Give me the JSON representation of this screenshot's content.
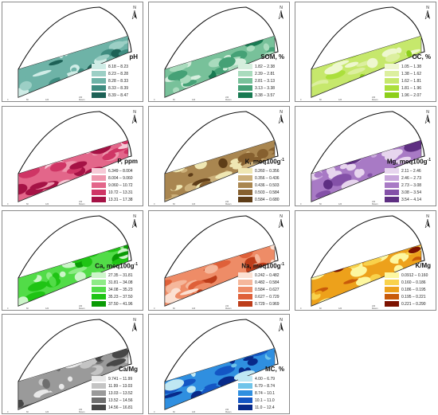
{
  "north_label": "N",
  "scale_ticks": [
    "0",
    "60",
    "120",
    "240 Meters"
  ],
  "panels": [
    {
      "title": "pH",
      "colors": [
        "#cfece6",
        "#9ccfc5",
        "#6eb3a7",
        "#3f8c80",
        "#1d6156"
      ],
      "classes": [
        "8.18 – 8.23",
        "8.23 – 8.28",
        "8.28 – 8.33",
        "8.33 – 8.39",
        "8.39 – 8.47"
      ]
    },
    {
      "title": "SOM, %",
      "colors": [
        "#d5eedd",
        "#a9dbbd",
        "#78c19a",
        "#45a176",
        "#187a52"
      ],
      "classes": [
        "1.82 – 2.38",
        "2.39 – 2.81",
        "2.81 – 3.13",
        "3.13 – 3.38",
        "3.38 – 3.57"
      ]
    },
    {
      "title": "OC, %",
      "colors": [
        "#eef7cf",
        "#dcef9f",
        "#c6e86c",
        "#abdf3c",
        "#8ccf1a"
      ],
      "classes": [
        "1.05 – 1.38",
        "1.38 – 1.62",
        "1.62 – 1.81",
        "1.81 – 1.96",
        "1.96 – 2.07"
      ]
    },
    {
      "title": "P, ppm",
      "colors": [
        "#f6c9d6",
        "#ee96ad",
        "#e3668a",
        "#cf3565",
        "#a51245"
      ],
      "classes": [
        "6.349 – 8.004",
        "8.004 – 9.060",
        "9.060 – 10.72",
        "10.72 – 13.31",
        "13.31 – 17.38"
      ]
    },
    {
      "title": "K, meq100g",
      "sup": "-1",
      "colors": [
        "#efe7b3",
        "#ccb07a",
        "#a98650",
        "#86602f",
        "#5e3d18"
      ],
      "classes": [
        "0.260 – 0.356",
        "0.356 – 0.436",
        "0.436 – 0.503",
        "0.503 – 0.584",
        "0.584 – 0.680"
      ]
    },
    {
      "title": "Mg, meq100g",
      "sup": "-1",
      "colors": [
        "#e7d5ee",
        "#c9a7dc",
        "#a87ac5",
        "#8451a8",
        "#5e2f82"
      ],
      "classes": [
        "2.11 – 2.46",
        "2.46 – 2.73",
        "2.73 – 3.08",
        "3.08 – 3.54",
        "3.54 – 4.14"
      ]
    },
    {
      "title": "Ca, meq100g",
      "sup": "-1",
      "colors": [
        "#ccf5c9",
        "#8eeb86",
        "#52dc48",
        "#1fc414",
        "#0a9b05"
      ],
      "classes": [
        "27.35 – 31.81",
        "31.81 – 34.08",
        "34.08 – 35.23",
        "35.23 – 37.50",
        "37.50 – 41.96"
      ]
    },
    {
      "title": "Na, meq100g",
      "sup": "-1",
      "colors": [
        "#fbe0d2",
        "#f5b79b",
        "#ee8c67",
        "#df6039",
        "#bd3d1a"
      ],
      "classes": [
        "0.242 – 0.482",
        "0.482 – 0.584",
        "0.584 – 0.627",
        "0.627 – 0.729",
        "0.729 – 0.969"
      ]
    },
    {
      "title": "K/Mg",
      "colors": [
        "#fdf7a0",
        "#f9d24b",
        "#eda11b",
        "#c85a0a",
        "#7c1200"
      ],
      "classes": [
        "0.0912 – 0.160",
        "0.160 – 0.186",
        "0.186 – 0.195",
        "0.195 – 0.221",
        "0.221 – 0.290"
      ]
    },
    {
      "title": "Ca/Mg",
      "colors": [
        "#e8e8e8",
        "#c4c4c4",
        "#9a9a9a",
        "#6e6e6e",
        "#474747"
      ],
      "classes": [
        "9.741 – 11.99",
        "11.99 – 13.03",
        "13.03 – 13.52",
        "13.52 – 14.56",
        "14.56 – 16.81"
      ]
    },
    {
      "title": "MC, %",
      "colors": [
        "#bfe7f3",
        "#6fc4ea",
        "#2f8fe0",
        "#1456c4",
        "#082a8a"
      ],
      "classes": [
        "4.00 – 6.79",
        "6.79 – 8.74",
        "8.74 – 10.1",
        "10.1 – 11.0",
        "11.0 – 12.4"
      ]
    }
  ]
}
